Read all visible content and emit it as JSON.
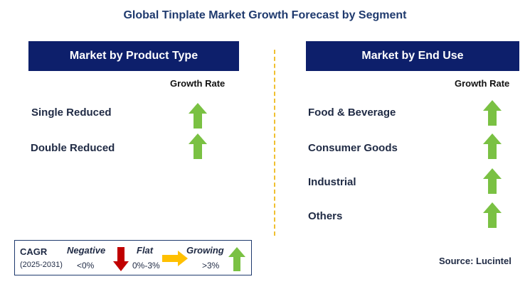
{
  "title": "Global Tinplate Market Growth Forecast by Segment",
  "left_panel": {
    "header": "Market by Product Type",
    "growth_label": "Growth Rate",
    "items": [
      {
        "label": "Single Reduced",
        "trend": "growing"
      },
      {
        "label": "Double Reduced",
        "trend": "growing"
      }
    ]
  },
  "right_panel": {
    "header": "Market by End Use",
    "growth_label": "Growth Rate",
    "items": [
      {
        "label": "Food & Beverage",
        "trend": "growing"
      },
      {
        "label": "Consumer Goods",
        "trend": "growing"
      },
      {
        "label": "Industrial",
        "trend": "growing"
      },
      {
        "label": "Others",
        "trend": "growing"
      }
    ]
  },
  "legend": {
    "cagr_label": "CAGR",
    "period": "(2025-2031)",
    "negative": {
      "label": "Negative",
      "range": "<0%",
      "icon": "down-arrow-icon",
      "color": "#c00000"
    },
    "flat": {
      "label": "Flat",
      "range": "0%-3%",
      "icon": "right-arrow-icon",
      "color": "#ffc000"
    },
    "growing": {
      "label": "Growing",
      "range": ">3%",
      "icon": "up-arrow-icon",
      "color": "#7ac143"
    }
  },
  "source": "Source: Lucintel",
  "colors": {
    "header_bg": "#0d1f6b",
    "divider": "#f0c030",
    "growing_arrow": "#7ac143"
  }
}
